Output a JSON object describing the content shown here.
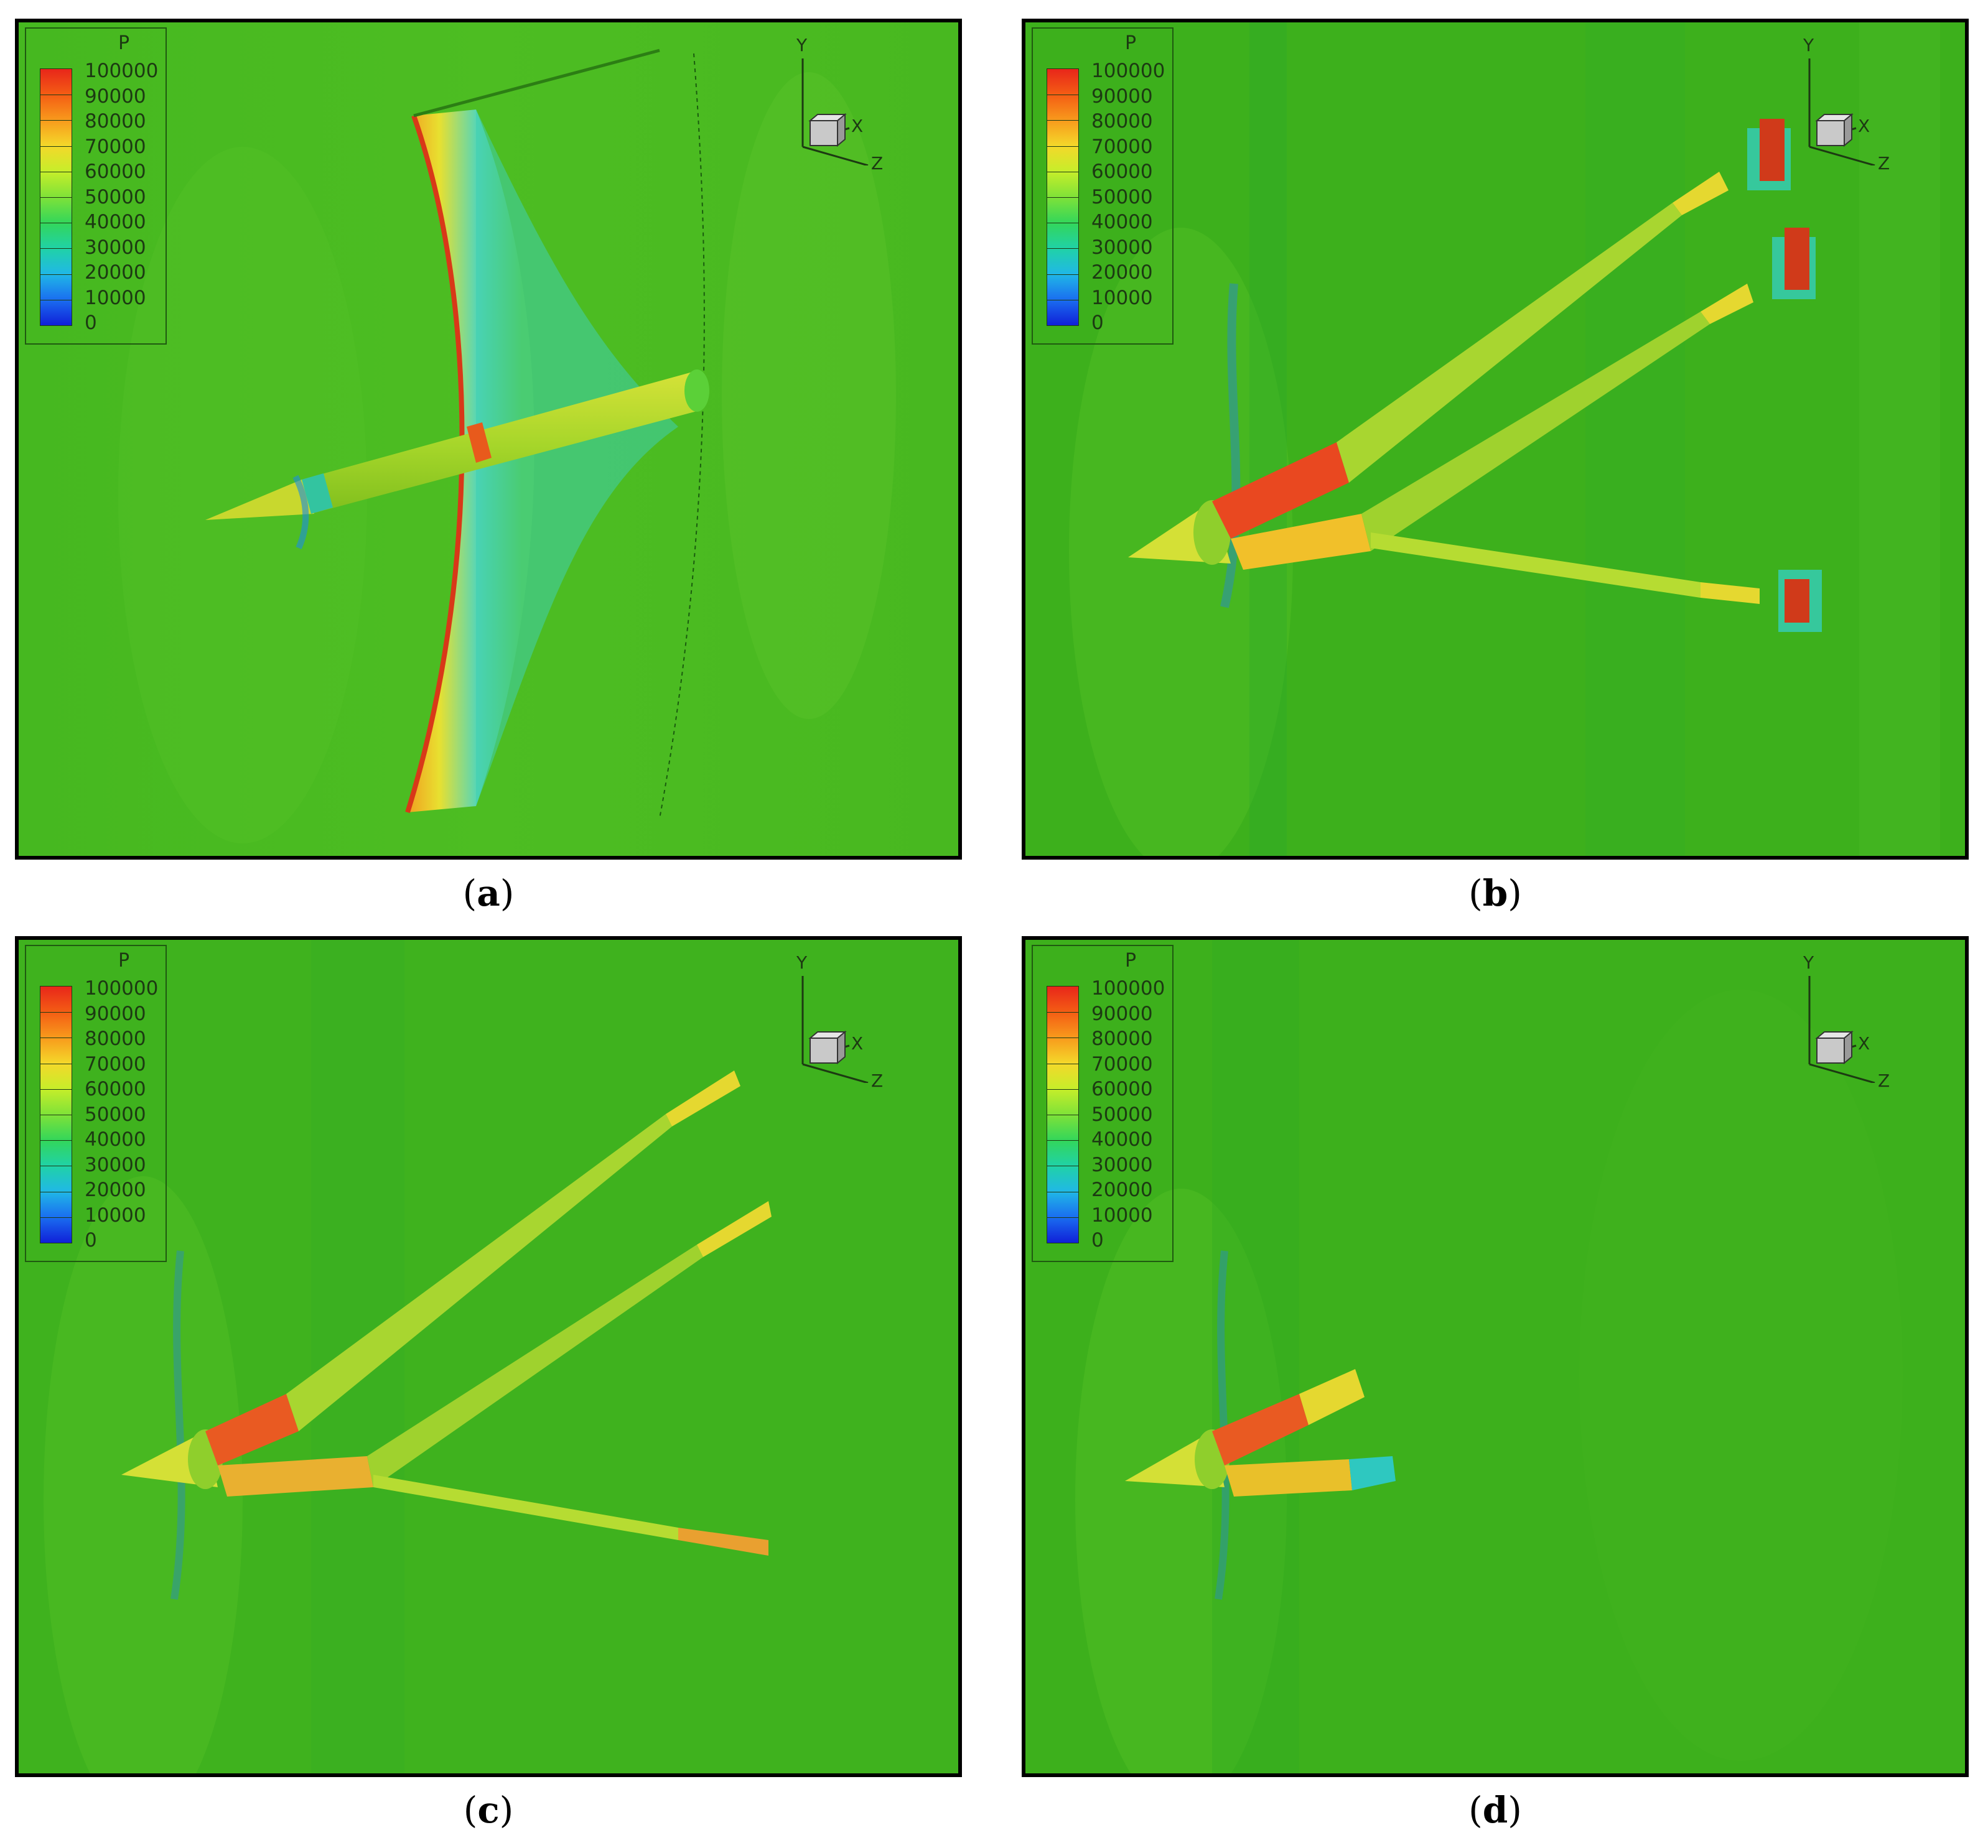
{
  "panels": [
    {
      "id": "a",
      "caption_open": "(",
      "caption_letter": "a",
      "caption_close": ")"
    },
    {
      "id": "b",
      "caption_open": "(",
      "caption_letter": "b",
      "caption_close": ")"
    },
    {
      "id": "c",
      "caption_open": "(",
      "caption_letter": "c",
      "caption_close": ")"
    },
    {
      "id": "d",
      "caption_open": "(",
      "caption_letter": "d",
      "caption_close": ")"
    }
  ],
  "legend": {
    "title": "P",
    "labels": [
      "100000",
      "90000",
      "80000",
      "70000",
      "60000",
      "50000",
      "40000",
      "30000",
      "20000",
      "10000",
      "0"
    ],
    "colors": [
      "#e8261a",
      "#f45d14",
      "#f89a1c",
      "#f4d82a",
      "#c6ee2a",
      "#7fe238",
      "#33d65a",
      "#20d2a6",
      "#20b8e6",
      "#1a6ef0",
      "#1020d8"
    ]
  },
  "axes": {
    "y": "Y",
    "x": "X",
    "z": "Z"
  },
  "colors": {
    "field": "#3fb61e",
    "field_light": "#58c826",
    "high": "#e33a18",
    "mid": "#f2d81e",
    "low": "#27c7b8"
  }
}
